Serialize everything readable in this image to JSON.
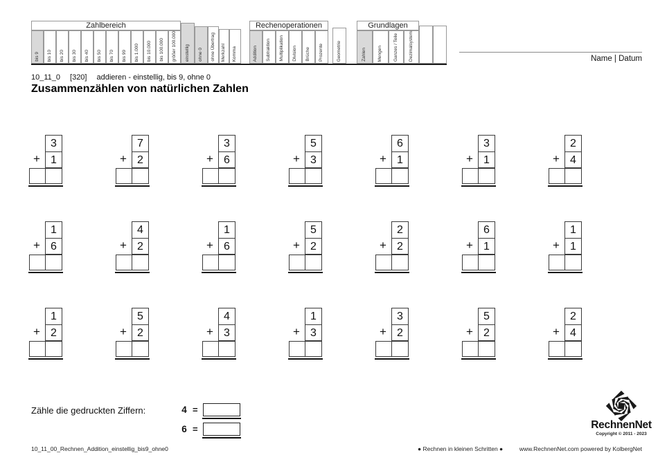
{
  "header_table": {
    "groups": [
      {
        "label": "Zahlbereich"
      },
      {
        "label": "Rechenoperationen"
      },
      {
        "label": "Grundlagen"
      }
    ],
    "columns": [
      {
        "label": "bis 9",
        "group": 0,
        "highlight": true
      },
      {
        "label": "bis 10",
        "group": 0
      },
      {
        "label": "bis 20",
        "group": 0
      },
      {
        "label": "bis 30",
        "group": 0
      },
      {
        "label": "bis 40",
        "group": 0
      },
      {
        "label": "bis 50",
        "group": 0
      },
      {
        "label": "bis 70",
        "group": 0
      },
      {
        "label": "bis 99",
        "group": 0
      },
      {
        "label": "bis 1.000",
        "group": 0
      },
      {
        "label": "bis 10.000",
        "group": 0
      },
      {
        "label": "bis 100.000",
        "group": 0
      },
      {
        "label": "größer 100.000",
        "group": 0
      },
      {
        "label": "einstellig",
        "highlight": true
      },
      {
        "label": "ohne 0",
        "highlight": true
      },
      {
        "label": "ohne Übertrag"
      },
      {
        "label": "Merkzahl"
      },
      {
        "label": "Komma"
      },
      {
        "label": "",
        "spacer": true
      },
      {
        "label": "Addition",
        "group": 1,
        "highlight": true
      },
      {
        "label": "Subtraktion",
        "group": 1
      },
      {
        "label": "Multiplikation",
        "group": 1
      },
      {
        "label": "Division",
        "group": 1
      },
      {
        "label": "Brüche",
        "group": 1
      },
      {
        "label": "Prozente",
        "group": 1
      },
      {
        "label": "",
        "spacer": true
      },
      {
        "label": "Geometrie"
      },
      {
        "label": "",
        "spacer": true
      },
      {
        "label": "Zahlen",
        "group": 2,
        "highlight": true
      },
      {
        "label": "Mengen",
        "group": 2
      },
      {
        "label": "Ganzes / Teile",
        "group": 2
      },
      {
        "label": "Dezimalsystem",
        "group": 2
      },
      {
        "label": ""
      },
      {
        "label": ""
      }
    ]
  },
  "name_datum_label": "Name | Datum",
  "worksheet": {
    "code": "10_11_0",
    "ref": "[320]",
    "subtitle": "addieren - einstellig, bis 9, ohne 0",
    "title": "Zusammenzählen von natürlichen Zahlen"
  },
  "problems": {
    "operator": "+",
    "rows": [
      [
        [
          3,
          1
        ],
        [
          7,
          2
        ],
        [
          3,
          6
        ],
        [
          5,
          3
        ],
        [
          6,
          1
        ],
        [
          3,
          1
        ],
        [
          2,
          4
        ]
      ],
      [
        [
          1,
          6
        ],
        [
          4,
          2
        ],
        [
          1,
          6
        ],
        [
          5,
          2
        ],
        [
          2,
          2
        ],
        [
          6,
          1
        ],
        [
          1,
          1
        ]
      ],
      [
        [
          1,
          2
        ],
        [
          5,
          2
        ],
        [
          4,
          3
        ],
        [
          1,
          3
        ],
        [
          3,
          2
        ],
        [
          5,
          2
        ],
        [
          2,
          4
        ]
      ]
    ]
  },
  "count_task": {
    "label": "Zähle die gedruckten Ziffern:",
    "items": [
      {
        "digit": "4",
        "eq": "="
      },
      {
        "digit": "6",
        "eq": "="
      }
    ]
  },
  "footer": {
    "left": "10_11_00_Rechnen_Addition_einstellig_bis9_ohne0",
    "center": "● Rechnen in kleinen Schritten ●",
    "right": "www.RechnenNet.com powered by KolbergNet"
  },
  "logo": {
    "name": "RechnenNet",
    "copyright": "Copyright © 2011 - 2023"
  },
  "colors": {
    "highlight": "#d9d9d9",
    "cell_border": "#999999",
    "box_border": "#3a3a3a",
    "ink": "#1a1a1a"
  }
}
